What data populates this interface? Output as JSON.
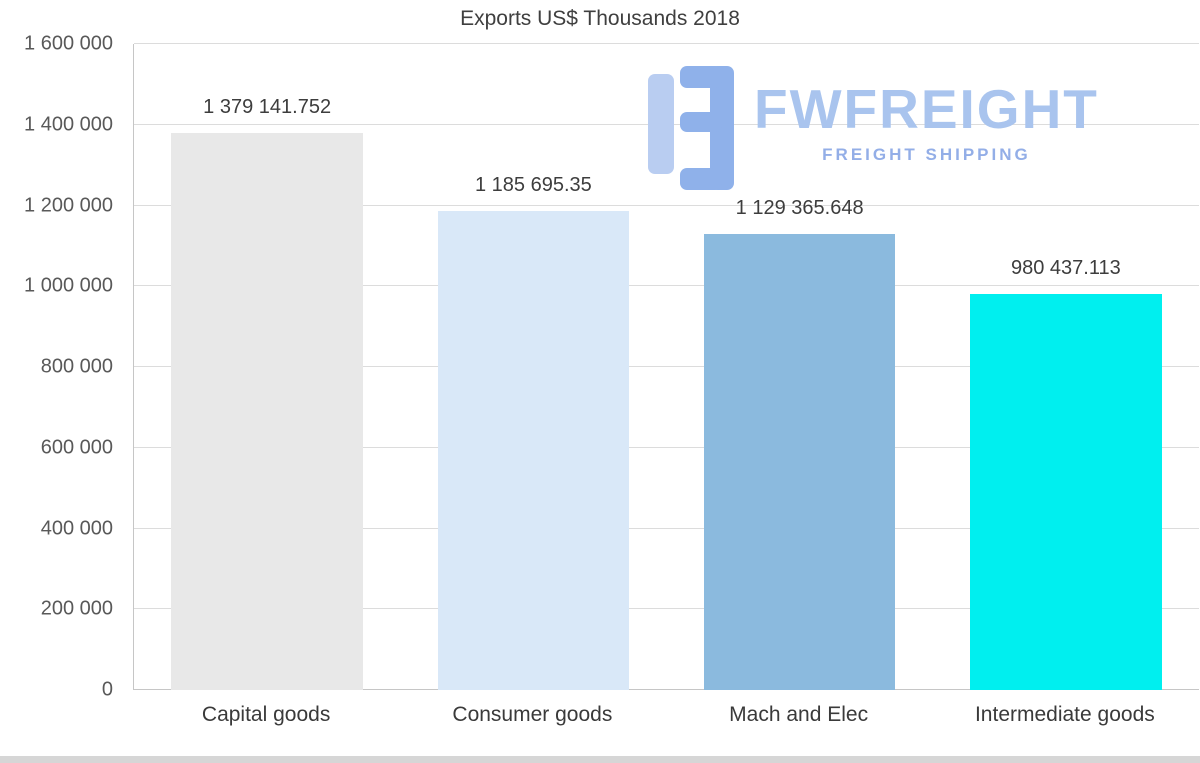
{
  "chart_data": {
    "type": "bar",
    "title": "Exports US$ Thousands 2018",
    "categories": [
      "Capital goods",
      "Consumer goods",
      "Mach and Elec",
      "Intermediate goods"
    ],
    "values": [
      1379141.752,
      1185695.35,
      1129365.648,
      980437.113
    ],
    "value_labels": [
      "1 379 141.752",
      "1 185 695.35",
      "1 129 365.648",
      "980 437.113"
    ],
    "bar_colors": [
      "#e8e8e8",
      "#d9e8f8",
      "#8bbade",
      "#00efef"
    ],
    "xlabel": "",
    "ylabel": "",
    "ylim": [
      0,
      1600000
    ],
    "ytick_step": 200000,
    "ytick_labels": [
      "0",
      "200 000",
      "400 000",
      "600 000",
      "800 000",
      "1 000 000",
      "1 200 000",
      "1 400 000",
      "1 600 000"
    ],
    "grid": true,
    "grid_color": "#dcdcdc",
    "legend": false
  },
  "watermark": {
    "brand": "FWFREIGHT",
    "tagline": "FREIGHT SHIPPING",
    "brand_color": "#a9c4ee",
    "icon": "fwfreight-logo-icon",
    "icon_color_light": "#b9cdf1",
    "icon_color_dark": "#8fb1ea"
  }
}
